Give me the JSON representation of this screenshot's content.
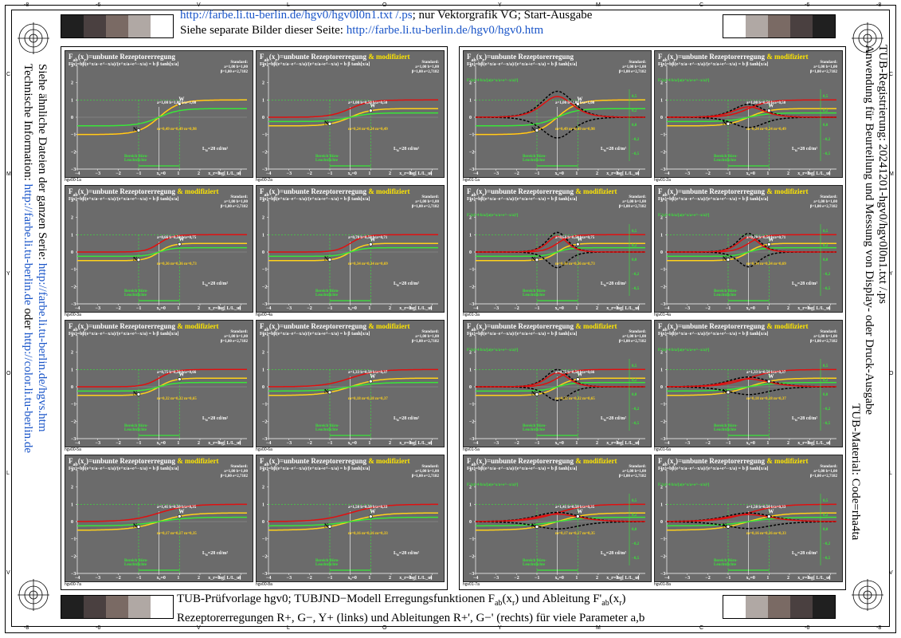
{
  "header": {
    "line1_link": "http://farbe.li.tu-berlin.de/hgv0/hgv0l0n1.txt /.ps",
    "line1_rest": "; nur Vektorgrafik VG; Start-Ausgabe",
    "line2_text": "Siehe separate Bilder dieser Seite: ",
    "line2_link": "http://farbe.li.tu-berlin.de/hgv0/hgv0.htm"
  },
  "footer": {
    "line1": "TUB-Prüfvorlage hgv0; TUBJND−Modell Erregungsfunktionen F",
    "line1_sub": "ab",
    "line1_mid": "(x",
    "line1_sub2": "r",
    "line1_mid2": ") und Ableitung F'",
    "line1_sub3": "ab",
    "line1_end": "(x",
    "line1_sub4": "r",
    "line1_end2": ")",
    "line2": "Rezeptorerregungen R+, G−, Y+ (links) und Ableitungen R+', G−' (rechts) für viele Parameter a,b"
  },
  "left_side": {
    "line1_text": "Siehe ähnliche Dateien der ganzen Serie: ",
    "line1_link": "http://farbe.li.tu-berlin.de/hgvs.htm",
    "line2_text": "Technische Information: ",
    "line2_link1": "http://farbe.li.tu-berlin.de",
    "line2_mid": " oder ",
    "line2_link2": "http://color.li.tu-berlin.de"
  },
  "right_side": {
    "line1": "TUB-Registrierung: 20241201-hgv0/hgv0l0n1.txt /.ps",
    "line2": "Anwendung für Beurteilung und Messung von Display- oder Druck-Ausgabe",
    "line3": "TUB-Material: Code=rha4ta"
  },
  "edge_labels": {
    "top": [
      "-8",
      "-6",
      "V",
      "L",
      "O",
      "Y",
      "M",
      "C",
      "-6",
      "-8"
    ],
    "side": [
      "C",
      "M",
      "Y",
      "O",
      "L",
      "V"
    ]
  },
  "colors": {
    "panel_bg": "#6b6b6b",
    "red_curve": "#e01010",
    "yellow_curve": "#ffd21a",
    "green_curve": "#39e639",
    "link_blue": "#1a55c8"
  },
  "gray_strip": [
    "#202020",
    "#4a4040",
    "#7a6a64",
    "#b0a8a4",
    "#ffffff"
  ],
  "gray_strip_right": [
    "#202020",
    "#4a4040",
    "#7a6a64",
    "#b0a8a4",
    "#ffffff"
  ],
  "panel_common": {
    "title_main": "F",
    "title_text": "(x",
    "title_rest": ")=unbunte Rezeptorerregung",
    "modified": " & modifiziert",
    "formula": "F(x)=bβ(e^x/a−e^−x/a)/(e^x/a+e^−x/a) = b β tanh[x/a]",
    "standard_lines": [
      "Standard:",
      "a=1,00 b=1,00",
      "β=1,00 e=2,7182"
    ],
    "Lu": "L",
    "Lu_val": "=28 cd/m²",
    "bereich": [
      "Bereich Büro-",
      "Leuchtdichte"
    ],
    "x_ticks": [
      "−4",
      "−3",
      "−2",
      "−1",
      "x₀=0",
      "1",
      "2",
      "3",
      "4"
    ],
    "x_axis_label": "x_r=log[ L/L_u]",
    "y_ticks": [
      "3",
      "2",
      "1",
      "0",
      "−1",
      "−2",
      "−3"
    ],
    "deriv_y_ticks": [
      "0,5",
      "0,2",
      "0,0",
      "−0,2",
      "−0,5"
    ],
    "deriv_formula": "F'(x)=4 b/a/[a(e^x/a+e^−x/a)²]"
  },
  "panels_left": [
    {
      "id": "hgv00-1a",
      "mod": false,
      "params": "a=1,00 b=1,00 b/a=1,00",
      "m": "m=0,49 m=0,49 m=0,98",
      "a": 1.0,
      "b": 1.0
    },
    {
      "id": "hgv00-2a",
      "mod": true,
      "params": "a=1,00 b=0,50 b/a=0,50",
      "m": "m=0,24 m=0,24 m=0,49",
      "a": 1.0,
      "b": 0.5
    },
    {
      "id": "hgv00-3a",
      "mod": true,
      "params": "a=0,66 b=0,50 b/a=0,75",
      "m": "m=0,36 m=0,36 m=0,73",
      "a": 0.66,
      "b": 0.5
    },
    {
      "id": "hgv00-4a",
      "mod": true,
      "params": "a=0,70 b=0,50 b/a=0,71",
      "m": "m=0,34 m=0,34 m=0,69",
      "a": 0.7,
      "b": 0.5
    },
    {
      "id": "hgv00-5a",
      "mod": true,
      "params": "a=0,75 b=0,50 b/a=0,66",
      "m": "m=0,32 m=0,32 m=0,65",
      "a": 0.75,
      "b": 0.5
    },
    {
      "id": "hgv00-6a",
      "mod": true,
      "params": "a=1,33 b=0,50 b/a=0,37",
      "m": "m=0,18 m=0,18 m=0,37",
      "a": 1.33,
      "b": 0.5
    },
    {
      "id": "hgv00-7a",
      "mod": true,
      "params": "a=1,41 b=0,50 b/a=0,35",
      "m": "m=0,17 m=0,17 m=0,35",
      "a": 1.41,
      "b": 0.5
    },
    {
      "id": "hgv00-8a",
      "mod": true,
      "params": "a=1,50 b=0,50 b/a=0,33",
      "m": "m=0,16 m=0,16 m=0,33",
      "a": 1.5,
      "b": 0.5
    }
  ],
  "panels_right": [
    {
      "id": "hgv01-1a",
      "mod": false,
      "params": "a=1,00 b=1,00 b/a=1,00",
      "m": "m=0,49 m=0,49 m=0,98",
      "a": 1.0,
      "b": 1.0
    },
    {
      "id": "hgv01-2a",
      "mod": true,
      "params": "a=1,00 b=0,50 b/a=0,50",
      "m": "m=0,24 m=0,24 m=0,49",
      "a": 1.0,
      "b": 0.5
    },
    {
      "id": "hgv01-3a",
      "mod": true,
      "params": "a=0,66 b=0,50 b/a=0,75",
      "m": "m=0,36 m=0,36 m=0,73",
      "a": 0.66,
      "b": 0.5
    },
    {
      "id": "hgv01-4a",
      "mod": true,
      "params": "a=0,70 b=0,50 b/a=0,71",
      "m": "m=0,34 m=0,34 m=0,69",
      "a": 0.7,
      "b": 0.5
    },
    {
      "id": "hgv01-5a",
      "mod": true,
      "params": "a=0,75 b=0,50 b/a=0,66",
      "m": "m=0,32 m=0,32 m=0,65",
      "a": 0.75,
      "b": 0.5
    },
    {
      "id": "hgv01-6a",
      "mod": true,
      "params": "a=1,33 b=0,50 b/a=0,37",
      "m": "m=0,18 m=0,18 m=0,37",
      "a": 1.33,
      "b": 0.5
    },
    {
      "id": "hgv01-7a",
      "mod": true,
      "params": "a=1,41 b=0,50 b/a=0,35",
      "m": "m=0,17 m=0,17 m=0,35",
      "a": 1.41,
      "b": 0.5
    },
    {
      "id": "hgv01-8a",
      "mod": true,
      "params": "a=1,50 b=0,50 b/a=0,33",
      "m": "m=0,16 m=0,16 m=0,33",
      "a": 1.5,
      "b": 0.5
    }
  ]
}
